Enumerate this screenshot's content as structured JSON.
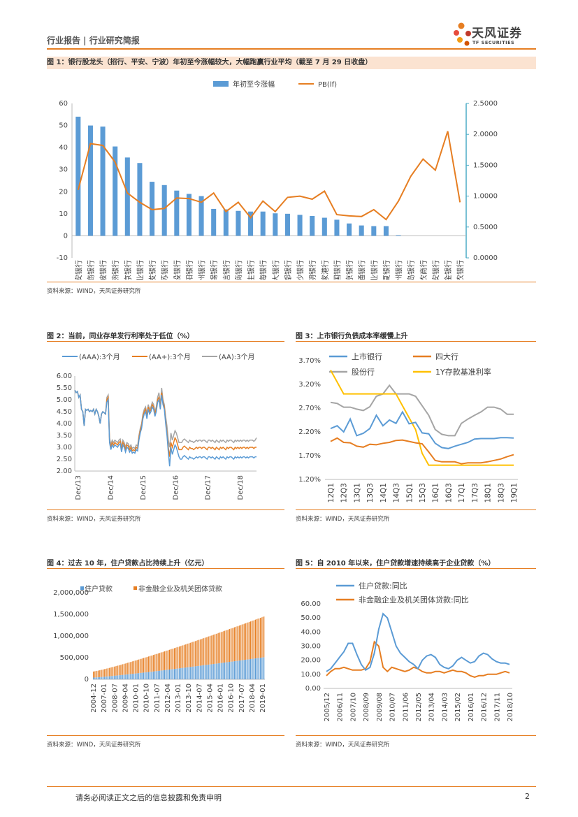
{
  "header": {
    "left": "行业报告 | 行业研究简报",
    "brand_cn": "天风证券",
    "brand_en": "TF SECURITIES"
  },
  "colors": {
    "orange": "#e67e22",
    "blue": "#5b9bd5",
    "gray": "#a5a5a5",
    "yellow": "#ffc000",
    "title_bg": "#fbe3d1"
  },
  "figures": [
    {
      "title": "图 1：银行股龙头（招行、平安、宁波）年初至今涨幅较大，大幅跑赢行业平均（截至 7 月 29 日收盘）",
      "source": "资料来源：WIND，天风证券研究所"
    },
    {
      "title": "图 2：当前，同业存单发行利率处于低位（%）",
      "source": "资料来源：WIND，天风证券研究所"
    },
    {
      "title": "图 3：上市银行负债成本率缓慢上升",
      "source": "资料来源：WIND，天风证券研究所"
    },
    {
      "title": "图 4：过去 10 年，住户贷款占比持续上升（亿元）",
      "source": "资料来源：WIND，天风证券研究所"
    },
    {
      "title": "图 5：自 2010 年以来，住户贷款增速持续高于企业贷款（%）",
      "source": "资料来源：WIND，天风证券研究所"
    }
  ],
  "chart_data": [
    {
      "type": "bar",
      "categories": [
        "平安银行",
        "招商银行",
        "宁波银行",
        "常熟银行",
        "南京银行",
        "兴业银行",
        "浦发银行",
        "江苏银行",
        "建设银行",
        "贵阳银行",
        "杭州银行",
        "无锡银行",
        "中信银行",
        "工商银行",
        "民生银行",
        "上海银行",
        "光大银行",
        "成都银行",
        "长沙银行",
        "江阴银行",
        "张家港行",
        "中国银行",
        "北京银行",
        "交通银行",
        "农业银行",
        "华夏银行",
        "郑州银行",
        "青岛银行",
        "青农商行",
        "西安银行",
        "紫金银行",
        "苏农银行"
      ],
      "series": [
        {
          "name": "年初至今涨幅",
          "axis": "left",
          "values": [
            54,
            50,
            49.5,
            40.5,
            35.5,
            33,
            24.5,
            23,
            20.5,
            19,
            18,
            12.2,
            12,
            11.3,
            11,
            11,
            10.2,
            10,
            9.5,
            9,
            8.2,
            7.3,
            5.6,
            4.7,
            4.4,
            4.4,
            0.3,
            0,
            0,
            0,
            0,
            0
          ]
        },
        {
          "name": "PB(lf)",
          "axis": "right",
          "values": [
            1.1,
            1.85,
            1.82,
            1.55,
            1.05,
            0.9,
            0.78,
            0.8,
            0.97,
            0.96,
            0.9,
            1.05,
            0.75,
            0.9,
            0.65,
            0.92,
            0.75,
            0.98,
            1.0,
            0.95,
            1.08,
            0.7,
            0.68,
            0.67,
            0.78,
            0.62,
            0.92,
            1.32,
            1.6,
            1.42,
            2.05,
            0.9
          ]
        }
      ],
      "ylim_left": [
        -10,
        60
      ],
      "yticks_left": [
        "-10",
        "0",
        "10",
        "20",
        "30",
        "40",
        "50",
        "60"
      ],
      "ylim_right": [
        0,
        2.5
      ],
      "yticks_right": [
        "0.0000",
        "0.5000",
        "1.0000",
        "1.5000",
        "2.0000",
        "2.5000"
      ],
      "legend": [
        "年初至今涨幅",
        "PB(lf)"
      ]
    },
    {
      "type": "line",
      "legend": [
        "(AAA):3个月",
        "(AA+):3个月",
        "(AA):3个月"
      ],
      "xticks": [
        "Dec/13",
        "Dec/14",
        "Dec/15",
        "Dec/16",
        "Dec/17",
        "Dec/18"
      ],
      "yticks": [
        "2.00",
        "2.50",
        "3.00",
        "3.50",
        "4.00",
        "4.50",
        "5.00",
        "5.50",
        "6.00"
      ],
      "ylim": [
        2.0,
        6.0
      ],
      "x": [
        0,
        0.5,
        1,
        1.5,
        2,
        2.5,
        3,
        3.5,
        4,
        4.5,
        5,
        5.5,
        6,
        6.5,
        7,
        7.5,
        8,
        8.5,
        9,
        9.5,
        10,
        10.5,
        11,
        11.5,
        12,
        12.5,
        13,
        13.5,
        14,
        14.5,
        15,
        15.5,
        16,
        16.5,
        17,
        17.5,
        18,
        18.5,
        19,
        19.5,
        20,
        20.5,
        21,
        21.5,
        22,
        22.5,
        23,
        23.5,
        24,
        24.5,
        25,
        25.5,
        26,
        26.5,
        27,
        27.5,
        28,
        28.5,
        29,
        29.5,
        30,
        30.5,
        31,
        31.5,
        32,
        32.5,
        33,
        33.5,
        34,
        34.5,
        35,
        35.5,
        36,
        36.5,
        37,
        37.5,
        38,
        38.5,
        39,
        39.5,
        40,
        40.5,
        41,
        41.5,
        42,
        42.5,
        43,
        43.5,
        44,
        44.5,
        45,
        45.5,
        46,
        46.5,
        47,
        47.5,
        48,
        48.5,
        49,
        49.5,
        50,
        50.5,
        51,
        51.5,
        52,
        52.5,
        53,
        53.5,
        54,
        54.5,
        55,
        55.5,
        56,
        56.5,
        57,
        57.5,
        58,
        58.5,
        59,
        59.5,
        60,
        60.5,
        61,
        61.5,
        62,
        62.5,
        63,
        63.5,
        64,
        64.5,
        65,
        65.5,
        66,
        66.5,
        67,
        67.5,
        68
      ],
      "series": [
        {
          "name": "(AAA):3个月",
          "values": [
            5.4,
            5.3,
            5.35,
            5.1,
            5.2,
            4.6,
            4.5,
            3.9,
            4.6,
            4.55,
            4.6,
            4.5,
            4.55,
            4.5,
            4.6,
            4.4,
            4.6,
            4.5,
            4.3,
            4.0,
            4.4,
            4.5,
            4.45,
            4.4,
            4.9,
            5.0,
            3.2,
            2.9,
            3.1,
            3.0,
            3.1,
            3.05,
            3.0,
            3.1,
            3.15,
            2.8,
            3.1,
            3.0,
            2.8,
            3.0,
            2.95,
            2.8,
            2.9,
            2.75,
            2.8,
            2.75,
            2.9,
            2.85,
            3.3,
            3.6,
            3.8,
            4.2,
            4.4,
            4.5,
            4.2,
            4.6,
            4.4,
            4.5,
            4.7,
            4.6,
            4.3,
            4.5,
            4.9,
            5.0,
            4.6,
            5.2,
            4.8,
            4.6,
            4.0,
            3.5,
            2.8,
            2.2,
            3.0,
            2.7,
            2.9,
            3.1,
            3.0,
            2.8,
            2.6,
            2.5,
            2.5,
            2.6,
            2.65,
            2.6,
            2.55,
            2.5,
            2.6,
            2.55,
            2.55,
            2.5,
            2.55,
            2.6,
            2.55,
            2.6,
            2.6,
            2.55,
            2.6,
            2.6,
            2.55,
            2.5,
            2.6,
            2.6,
            2.55,
            2.6,
            2.55,
            2.5,
            2.6,
            2.55,
            2.5,
            2.6,
            2.55,
            2.6,
            2.55,
            2.5,
            2.6,
            2.55,
            2.6,
            2.6,
            2.55,
            2.5,
            2.6,
            2.55,
            2.6,
            2.55,
            2.6,
            2.55,
            2.6,
            2.6,
            2.55,
            2.6,
            2.55,
            2.6,
            2.6,
            2.6,
            2.55,
            2.6,
            2.6
          ]
        },
        {
          "name": "(AA+):3个月",
          "values": [
            5.4,
            5.3,
            5.35,
            5.1,
            5.2,
            4.6,
            4.5,
            3.9,
            4.6,
            4.55,
            4.6,
            4.5,
            4.55,
            4.5,
            4.6,
            4.4,
            4.6,
            4.5,
            4.3,
            4.0,
            4.4,
            4.5,
            4.45,
            4.4,
            5.0,
            5.1,
            3.3,
            3.0,
            3.2,
            3.1,
            3.2,
            3.15,
            3.1,
            3.2,
            3.25,
            2.9,
            3.2,
            3.1,
            2.9,
            3.1,
            3.05,
            2.9,
            3.0,
            2.85,
            2.9,
            2.85,
            3.0,
            2.95,
            3.4,
            3.7,
            3.9,
            4.3,
            4.5,
            4.6,
            4.3,
            4.7,
            4.5,
            4.6,
            4.8,
            4.7,
            4.4,
            4.6,
            5.0,
            5.1,
            4.7,
            5.3,
            4.9,
            4.7,
            4.1,
            3.6,
            3.0,
            2.6,
            3.2,
            3.0,
            3.2,
            3.4,
            3.3,
            3.1,
            2.9,
            2.9,
            2.9,
            3.0,
            3.05,
            3.0,
            2.95,
            2.9,
            3.0,
            2.95,
            2.95,
            2.9,
            2.95,
            3.0,
            2.95,
            3.0,
            3.0,
            2.95,
            3.0,
            3.0,
            2.95,
            2.9,
            3.0,
            3.0,
            2.95,
            3.0,
            2.95,
            2.9,
            3.0,
            2.95,
            2.9,
            3.0,
            2.95,
            3.0,
            2.95,
            2.9,
            3.0,
            2.95,
            3.0,
            3.0,
            2.95,
            2.9,
            3.0,
            2.95,
            3.0,
            2.95,
            3.0,
            2.95,
            3.0,
            3.0,
            2.95,
            3.0,
            2.95,
            3.0,
            3.0,
            3.0,
            2.95,
            3.0,
            3.0
          ]
        },
        {
          "name": "(AA):3个月",
          "values": [
            5.4,
            5.3,
            5.35,
            5.1,
            5.2,
            4.6,
            4.5,
            3.9,
            4.6,
            4.55,
            4.6,
            4.5,
            4.55,
            4.5,
            4.6,
            4.4,
            4.6,
            4.5,
            4.3,
            4.0,
            4.4,
            4.5,
            4.45,
            4.4,
            5.1,
            5.2,
            3.4,
            3.1,
            3.3,
            3.2,
            3.3,
            3.25,
            3.2,
            3.3,
            3.35,
            3.0,
            3.3,
            3.2,
            3.0,
            3.2,
            3.15,
            3.0,
            3.1,
            2.95,
            3.0,
            2.95,
            3.1,
            3.05,
            3.5,
            3.8,
            4.0,
            4.4,
            4.6,
            4.7,
            4.4,
            4.8,
            4.6,
            4.7,
            4.9,
            4.8,
            4.5,
            4.7,
            5.1,
            5.3,
            4.8,
            5.5,
            5.0,
            4.8,
            4.3,
            3.9,
            3.3,
            3.0,
            3.6,
            3.3,
            3.5,
            3.7,
            3.6,
            3.4,
            3.2,
            3.2,
            3.2,
            3.3,
            3.35,
            3.3,
            3.25,
            3.2,
            3.3,
            3.25,
            3.25,
            3.2,
            3.25,
            3.3,
            3.25,
            3.3,
            3.3,
            3.25,
            3.3,
            3.3,
            3.25,
            3.2,
            3.3,
            3.3,
            3.25,
            3.3,
            3.25,
            3.2,
            3.3,
            3.25,
            3.2,
            3.3,
            3.25,
            3.3,
            3.25,
            3.2,
            3.3,
            3.25,
            3.3,
            3.3,
            3.25,
            3.2,
            3.3,
            3.25,
            3.3,
            3.25,
            3.3,
            3.25,
            3.3,
            3.3,
            3.25,
            3.3,
            3.25,
            3.3,
            3.3,
            3.3,
            3.25,
            3.3,
            3.4
          ]
        }
      ]
    },
    {
      "type": "line",
      "legend": [
        "上市银行",
        "四大行",
        "股份行",
        "1Y存款基准利率"
      ],
      "categories": [
        "12Q1",
        "12Q2",
        "12Q3",
        "12Q4",
        "13Q1",
        "13Q2",
        "13Q3",
        "13Q4",
        "14Q1",
        "14Q2",
        "14Q3",
        "14Q4",
        "15Q1",
        "15Q2",
        "15Q3",
        "15Q4",
        "16Q1",
        "16Q2",
        "16Q3",
        "16Q4",
        "17Q1",
        "17Q2",
        "17Q3",
        "17Q4",
        "18Q1",
        "18Q2",
        "18Q3",
        "18Q4",
        "19Q1"
      ],
      "xticks": [
        "12Q1",
        "12Q3",
        "13Q1",
        "13Q3",
        "14Q1",
        "14Q3",
        "15Q1",
        "15Q3",
        "16Q1",
        "16Q3",
        "17Q1",
        "17Q3",
        "18Q1",
        "18Q3",
        "19Q1"
      ],
      "yticks": [
        "1.20%",
        "1.70%",
        "2.20%",
        "2.70%",
        "3.20%",
        "3.70%"
      ],
      "ylim": [
        1.2,
        3.7
      ],
      "series": [
        {
          "name": "上市银行",
          "values": [
            2.27,
            2.33,
            2.2,
            2.47,
            2.12,
            2.17,
            2.27,
            2.55,
            2.33,
            2.45,
            2.38,
            2.62,
            2.37,
            2.4,
            2.18,
            2.16,
            1.96,
            1.87,
            1.85,
            1.9,
            1.94,
            1.98,
            2.05,
            2.06,
            2.06,
            2.06,
            2.08,
            2.08,
            2.07
          ]
        },
        {
          "name": "四大行",
          "values": [
            2.0,
            2.07,
            1.98,
            1.97,
            1.9,
            1.88,
            1.94,
            1.93,
            1.96,
            1.98,
            2.02,
            2.03,
            2.0,
            1.97,
            1.95,
            1.78,
            1.6,
            1.57,
            1.57,
            1.57,
            1.53,
            1.55,
            1.55,
            1.55,
            1.57,
            1.6,
            1.63,
            1.68,
            1.72
          ]
        },
        {
          "name": "股份行",
          "values": [
            2.82,
            2.8,
            2.72,
            2.72,
            2.68,
            2.65,
            2.73,
            2.95,
            3.0,
            3.18,
            3.0,
            3.0,
            3.0,
            2.95,
            2.75,
            2.55,
            2.25,
            2.15,
            2.12,
            2.12,
            2.38,
            2.47,
            2.55,
            2.62,
            2.72,
            2.72,
            2.68,
            2.57,
            2.57
          ]
        },
        {
          "name": "1Y存款基准利率",
          "values": [
            3.5,
            3.25,
            3.0,
            3.0,
            3.0,
            3.0,
            3.0,
            3.0,
            3.0,
            3.0,
            3.0,
            2.75,
            2.5,
            2.25,
            1.75,
            1.5,
            1.5,
            1.5,
            1.5,
            1.5,
            1.5,
            1.5,
            1.5,
            1.5,
            1.5,
            1.5,
            1.5,
            1.5,
            1.5
          ]
        }
      ]
    },
    {
      "type": "bar",
      "stacked": true,
      "legend": [
        "住户贷款",
        "非金融企业及机关团体贷款"
      ],
      "xticks": [
        "2004-12",
        "2007-01",
        "2008-07",
        "2009-04",
        "2010-01",
        "2010-10",
        "2011-07",
        "2012-04",
        "2013-01",
        "2013-10",
        "2014-07",
        "2015-04",
        "2016-01",
        "2016-10",
        "2017-07",
        "2018-04",
        "2019-01"
      ],
      "yticks": [
        "0",
        "500,000",
        "1,000,000",
        "1,500,000",
        "2,000,000"
      ],
      "ylim": [
        0,
        2000000
      ],
      "series": [
        {
          "name": "住户贷款",
          "start": 40000,
          "end": 510000
        },
        {
          "name": "非金融企业及机关团体贷款",
          "start": 140000,
          "end": 940000
        }
      ]
    },
    {
      "type": "line",
      "legend": [
        "住户贷款:同比",
        "非金融企业及机关团体贷款:同比"
      ],
      "xticks": [
        "2005/12",
        "2006/11",
        "2007/10",
        "2008/09",
        "2009/08",
        "2010/07",
        "2011/06",
        "2012/05",
        "2013/04",
        "2014/03",
        "2015/02",
        "2016/01",
        "2016/12",
        "2017/11",
        "2018/10"
      ],
      "yticks": [
        "0.00",
        "10.00",
        "20.00",
        "30.00",
        "40.00",
        "50.00",
        "60.00"
      ],
      "ylim": [
        0,
        60
      ],
      "series": [
        {
          "name": "住户贷款:同比",
          "values": [
            12,
            14,
            18,
            22,
            26,
            32,
            32,
            24,
            17,
            13,
            15,
            25,
            42,
            53,
            50,
            40,
            30,
            25,
            22,
            19,
            17,
            14,
            20,
            23,
            24,
            22,
            17,
            15,
            14,
            16,
            20,
            22,
            20,
            18,
            19,
            23,
            25,
            24,
            21,
            19,
            18,
            18,
            17
          ]
        },
        {
          "name": "非金融企业及机关团体贷款:同比",
          "values": [
            9,
            12,
            14,
            14,
            15,
            14,
            13,
            13,
            13,
            14,
            19,
            33,
            30,
            15,
            12,
            15,
            14,
            13,
            12,
            13,
            15,
            14,
            12,
            11,
            11,
            12,
            12,
            11,
            12,
            13,
            12,
            12,
            11,
            9,
            8,
            9,
            9,
            10,
            10,
            10,
            11,
            12,
            11
          ]
        }
      ]
    }
  ],
  "footer": {
    "disclaimer": "请务必阅读正文之后的信息披露和免责申明",
    "page": "2"
  }
}
